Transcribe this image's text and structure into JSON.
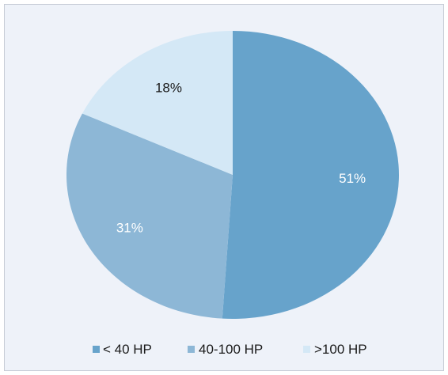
{
  "chart_data": {
    "type": "pie",
    "categories": [
      "< 40 HP",
      "40-100 HP",
      ">100 HP"
    ],
    "values": [
      51,
      31,
      18
    ],
    "labels": [
      "51%",
      "31%",
      "18%"
    ],
    "colors": [
      "#67a3cb",
      "#8db7d6",
      "#d4e8f6"
    ],
    "label_colors": [
      "#ffffff",
      "#ffffff",
      "#1a1a1a"
    ],
    "legend_position": "bottom",
    "title": ""
  }
}
